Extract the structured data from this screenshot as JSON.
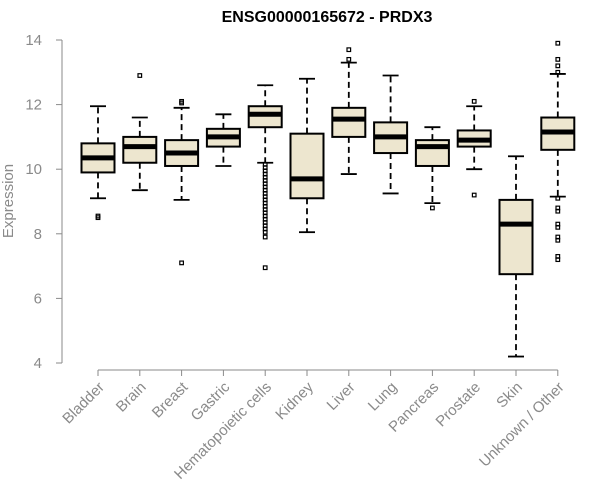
{
  "chart_data": {
    "type": "boxplot",
    "title": "ENSG00000165672 - PRDX3",
    "xlabel": "",
    "ylabel": "Expression",
    "ylim": [
      4,
      14
    ],
    "yticks": [
      4,
      6,
      8,
      10,
      12,
      14
    ],
    "box_fill": "#ede6cf",
    "box_stroke": "#000000",
    "categories": [
      "Bladder",
      "Brain",
      "Breast",
      "Gastric",
      "Hematopoietic cells",
      "Kidney",
      "Liver",
      "Lung",
      "Pancreas",
      "Prostate",
      "Skin",
      "Unknown / Other"
    ],
    "boxes": [
      {
        "name": "Bladder",
        "whisker_low": 9.1,
        "q1": 9.9,
        "median": 10.35,
        "q3": 10.8,
        "whisker_high": 11.95,
        "outliers": [
          8.5,
          8.55
        ]
      },
      {
        "name": "Brain",
        "whisker_low": 9.35,
        "q1": 10.2,
        "median": 10.7,
        "q3": 11.0,
        "whisker_high": 11.6,
        "outliers": [
          12.9
        ]
      },
      {
        "name": "Breast",
        "whisker_low": 9.05,
        "q1": 10.1,
        "median": 10.5,
        "q3": 10.9,
        "whisker_high": 11.9,
        "outliers": [
          12.05,
          12.1,
          7.1
        ]
      },
      {
        "name": "Gastric",
        "whisker_low": 10.1,
        "q1": 10.7,
        "median": 11.0,
        "q3": 11.25,
        "whisker_high": 11.7,
        "outliers": []
      },
      {
        "name": "Hematopoietic cells",
        "whisker_low": 10.2,
        "q1": 11.3,
        "median": 11.7,
        "q3": 11.95,
        "whisker_high": 12.6,
        "outliers": [
          10.15,
          10.05,
          9.95,
          9.85,
          9.75,
          9.65,
          9.55,
          9.45,
          9.35,
          9.25,
          9.15,
          9.05,
          8.95,
          8.85,
          8.75,
          8.65,
          8.55,
          8.45,
          8.35,
          8.25,
          8.15,
          8.05,
          7.9,
          6.95
        ]
      },
      {
        "name": "Kidney",
        "whisker_low": 8.05,
        "q1": 9.1,
        "median": 9.7,
        "q3": 11.1,
        "whisker_high": 12.8,
        "outliers": []
      },
      {
        "name": "Liver",
        "whisker_low": 9.85,
        "q1": 11.0,
        "median": 11.55,
        "q3": 11.9,
        "whisker_high": 13.3,
        "outliers": [
          13.4,
          13.7
        ]
      },
      {
        "name": "Lung",
        "whisker_low": 9.25,
        "q1": 10.5,
        "median": 11.0,
        "q3": 11.45,
        "whisker_high": 12.9,
        "outliers": []
      },
      {
        "name": "Pancreas",
        "whisker_low": 8.95,
        "q1": 10.1,
        "median": 10.7,
        "q3": 10.9,
        "whisker_high": 11.3,
        "outliers": [
          8.8
        ]
      },
      {
        "name": "Prostate",
        "whisker_low": 10.0,
        "q1": 10.7,
        "median": 10.9,
        "q3": 11.2,
        "whisker_high": 11.95,
        "outliers": [
          12.1,
          9.2
        ]
      },
      {
        "name": "Skin",
        "whisker_low": 4.2,
        "q1": 6.75,
        "median": 8.3,
        "q3": 9.05,
        "whisker_high": 10.4,
        "outliers": []
      },
      {
        "name": "Unknown / Other",
        "whisker_low": 9.15,
        "q1": 10.6,
        "median": 11.15,
        "q3": 11.6,
        "whisker_high": 12.95,
        "outliers": [
          13.0,
          13.2,
          13.4,
          13.9,
          9.1,
          8.8,
          8.7,
          8.3,
          8.2,
          7.9,
          7.8,
          7.3,
          7.2
        ]
      }
    ]
  }
}
